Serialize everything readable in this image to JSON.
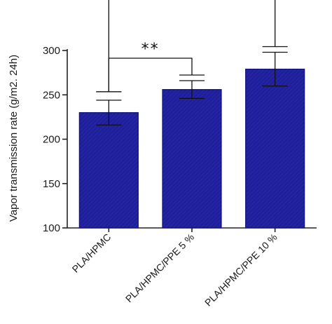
{
  "chart_data": {
    "type": "bar",
    "title": "",
    "xlabel": "",
    "ylabel": "Vapor transmission rate (g/m2. 24h)",
    "categories": [
      "PLA/HPMC",
      "PLA/HPMC/PPE 5 %",
      "PLA/HPMC/PPE 10 %"
    ],
    "values": [
      230,
      256,
      279
    ],
    "errors": [
      14,
      10,
      19
    ],
    "ylim": [
      100,
      300
    ],
    "yticks": [
      "100",
      "150",
      "200",
      "250",
      "300"
    ],
    "grid": false,
    "legend": "none",
    "bar_color": "#1f1f9a",
    "significance": [
      {
        "from": 0,
        "to": 1,
        "label": "**"
      },
      {
        "from": 0,
        "to": 2,
        "label": "***"
      }
    ]
  }
}
